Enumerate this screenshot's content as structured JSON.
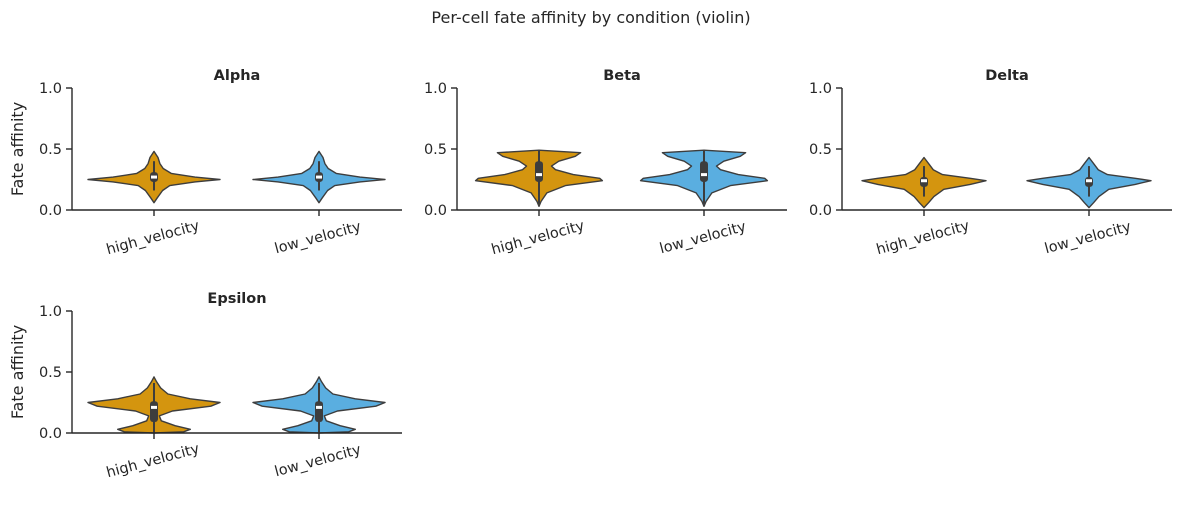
{
  "chart_data": {
    "type": "violin",
    "title": "Per-cell fate affinity by condition (violin)",
    "ylabel": "Fate affinity",
    "xlabel": "",
    "ylim": [
      0,
      1.0
    ],
    "yticks": [
      "0.0",
      "0.5",
      "1.0"
    ],
    "categories": [
      "high_velocity",
      "low_velocity"
    ],
    "colors": {
      "high_velocity": "#d4950f",
      "low_velocity": "#5aaee0",
      "edge": "#3d3d3d"
    },
    "panels": [
      {
        "title": "Alpha",
        "violins": [
          {
            "category": "high_velocity",
            "min": 0.06,
            "max": 0.48,
            "q1": 0.23,
            "median": 0.27,
            "q3": 0.31,
            "whisker_low": 0.16,
            "whisker_high": 0.4,
            "density": [
              [
                0.06,
                0.0
              ],
              [
                0.1,
                0.05
              ],
              [
                0.16,
                0.13
              ],
              [
                0.2,
                0.24
              ],
              [
                0.23,
                0.62
              ],
              [
                0.25,
                1.0
              ],
              [
                0.27,
                0.62
              ],
              [
                0.3,
                0.26
              ],
              [
                0.34,
                0.14
              ],
              [
                0.38,
                0.09
              ],
              [
                0.43,
                0.06
              ],
              [
                0.48,
                0.0
              ]
            ]
          },
          {
            "category": "low_velocity",
            "min": 0.06,
            "max": 0.48,
            "q1": 0.23,
            "median": 0.27,
            "q3": 0.31,
            "whisker_low": 0.16,
            "whisker_high": 0.4,
            "density": [
              [
                0.06,
                0.0
              ],
              [
                0.1,
                0.05
              ],
              [
                0.16,
                0.13
              ],
              [
                0.2,
                0.24
              ],
              [
                0.23,
                0.62
              ],
              [
                0.25,
                1.0
              ],
              [
                0.27,
                0.62
              ],
              [
                0.3,
                0.26
              ],
              [
                0.34,
                0.14
              ],
              [
                0.38,
                0.09
              ],
              [
                0.43,
                0.06
              ],
              [
                0.48,
                0.0
              ]
            ]
          }
        ]
      },
      {
        "title": "Beta",
        "violins": [
          {
            "category": "high_velocity",
            "min": 0.03,
            "max": 0.49,
            "q1": 0.23,
            "median": 0.29,
            "q3": 0.4,
            "whisker_low": 0.05,
            "whisker_high": 0.49,
            "density": [
              [
                0.03,
                0.0
              ],
              [
                0.07,
                0.03
              ],
              [
                0.14,
                0.12
              ],
              [
                0.2,
                0.4
              ],
              [
                0.24,
                0.96
              ],
              [
                0.26,
                0.92
              ],
              [
                0.29,
                0.52
              ],
              [
                0.33,
                0.25
              ],
              [
                0.36,
                0.19
              ],
              [
                0.4,
                0.3
              ],
              [
                0.44,
                0.55
              ],
              [
                0.47,
                0.63
              ],
              [
                0.49,
                0.0
              ]
            ]
          },
          {
            "category": "low_velocity",
            "min": 0.03,
            "max": 0.49,
            "q1": 0.23,
            "median": 0.29,
            "q3": 0.4,
            "whisker_low": 0.05,
            "whisker_high": 0.49,
            "density": [
              [
                0.03,
                0.0
              ],
              [
                0.07,
                0.03
              ],
              [
                0.14,
                0.12
              ],
              [
                0.2,
                0.4
              ],
              [
                0.24,
                0.96
              ],
              [
                0.26,
                0.92
              ],
              [
                0.29,
                0.52
              ],
              [
                0.33,
                0.25
              ],
              [
                0.36,
                0.19
              ],
              [
                0.4,
                0.3
              ],
              [
                0.44,
                0.55
              ],
              [
                0.47,
                0.63
              ],
              [
                0.49,
                0.0
              ]
            ]
          }
        ]
      },
      {
        "title": "Delta",
        "violins": [
          {
            "category": "high_velocity",
            "min": 0.02,
            "max": 0.43,
            "q1": 0.19,
            "median": 0.24,
            "q3": 0.27,
            "whisker_low": 0.11,
            "whisker_high": 0.36,
            "density": [
              [
                0.02,
                0.0
              ],
              [
                0.06,
                0.07
              ],
              [
                0.11,
                0.15
              ],
              [
                0.17,
                0.3
              ],
              [
                0.21,
                0.7
              ],
              [
                0.24,
                0.94
              ],
              [
                0.26,
                0.7
              ],
              [
                0.29,
                0.28
              ],
              [
                0.33,
                0.14
              ],
              [
                0.38,
                0.07
              ],
              [
                0.43,
                0.0
              ]
            ]
          },
          {
            "category": "low_velocity",
            "min": 0.02,
            "max": 0.43,
            "q1": 0.19,
            "median": 0.24,
            "q3": 0.27,
            "whisker_low": 0.11,
            "whisker_high": 0.36,
            "density": [
              [
                0.02,
                0.0
              ],
              [
                0.06,
                0.07
              ],
              [
                0.11,
                0.15
              ],
              [
                0.17,
                0.3
              ],
              [
                0.21,
                0.7
              ],
              [
                0.24,
                0.94
              ],
              [
                0.26,
                0.7
              ],
              [
                0.29,
                0.28
              ],
              [
                0.33,
                0.14
              ],
              [
                0.38,
                0.07
              ],
              [
                0.43,
                0.0
              ]
            ]
          }
        ]
      },
      {
        "title": "Epsilon",
        "violins": [
          {
            "category": "high_velocity",
            "min": 0.0,
            "max": 0.46,
            "q1": 0.09,
            "median": 0.21,
            "q3": 0.26,
            "whisker_low": 0.0,
            "whisker_high": 0.41,
            "density": [
              [
                0.0,
                0.0
              ],
              [
                0.01,
                0.45
              ],
              [
                0.03,
                0.55
              ],
              [
                0.06,
                0.32
              ],
              [
                0.1,
                0.11
              ],
              [
                0.14,
                0.08
              ],
              [
                0.18,
                0.28
              ],
              [
                0.22,
                0.86
              ],
              [
                0.25,
                1.0
              ],
              [
                0.28,
                0.55
              ],
              [
                0.32,
                0.21
              ],
              [
                0.37,
                0.1
              ],
              [
                0.42,
                0.04
              ],
              [
                0.46,
                0.0
              ]
            ]
          },
          {
            "category": "low_velocity",
            "min": 0.0,
            "max": 0.46,
            "q1": 0.09,
            "median": 0.21,
            "q3": 0.26,
            "whisker_low": 0.0,
            "whisker_high": 0.41,
            "density": [
              [
                0.0,
                0.0
              ],
              [
                0.01,
                0.45
              ],
              [
                0.03,
                0.55
              ],
              [
                0.06,
                0.32
              ],
              [
                0.1,
                0.11
              ],
              [
                0.14,
                0.08
              ],
              [
                0.18,
                0.28
              ],
              [
                0.22,
                0.86
              ],
              [
                0.25,
                1.0
              ],
              [
                0.28,
                0.55
              ],
              [
                0.32,
                0.21
              ],
              [
                0.37,
                0.1
              ],
              [
                0.42,
                0.04
              ],
              [
                0.46,
                0.0
              ]
            ]
          }
        ]
      }
    ]
  }
}
